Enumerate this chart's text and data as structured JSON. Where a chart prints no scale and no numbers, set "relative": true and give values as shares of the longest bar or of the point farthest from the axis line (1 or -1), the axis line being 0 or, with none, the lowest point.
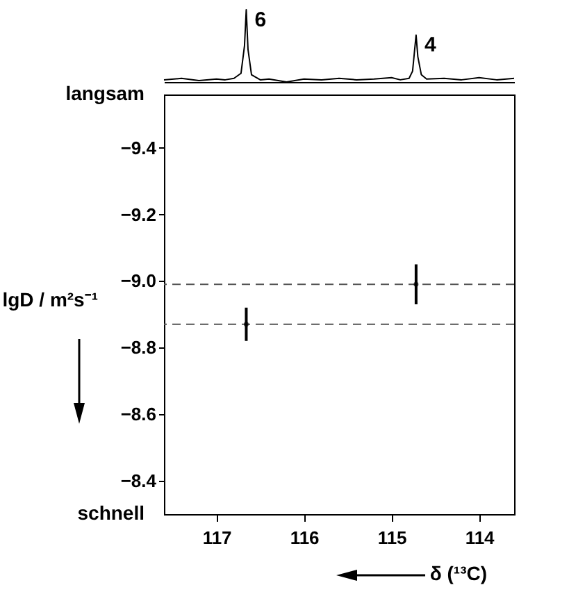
{
  "chart_data": [
    {
      "type": "line",
      "relative": true,
      "xlim": [
        117.6,
        113.6
      ],
      "x": [
        117.6,
        117.4,
        117.2,
        117.0,
        116.9,
        116.8,
        116.72,
        116.68,
        116.66,
        116.64,
        116.6,
        116.5,
        116.4,
        116.2,
        116.0,
        115.8,
        115.6,
        115.4,
        115.2,
        115.0,
        114.9,
        114.8,
        114.76,
        114.74,
        114.72,
        114.7,
        114.66,
        114.6,
        114.4,
        114.2,
        114.0,
        113.8,
        113.6
      ],
      "values": [
        0.03,
        0.05,
        0.02,
        0.04,
        0.03,
        0.05,
        0.12,
        0.5,
        1,
        0.45,
        0.1,
        0.03,
        0.04,
        0,
        0.04,
        0.03,
        0.05,
        0.03,
        0.04,
        0.06,
        0.03,
        0.05,
        0.15,
        0.4,
        0.65,
        0.35,
        0.1,
        0.04,
        0.05,
        0.03,
        0.06,
        0.03,
        0.05
      ],
      "annotations": [
        {
          "text": "6",
          "x": 116.66,
          "y": 1
        },
        {
          "text": "4",
          "x": 114.72,
          "y": 0.65
        }
      ]
    },
    {
      "type": "scatter",
      "marker": "circle",
      "xlabel": "δ (¹³C)",
      "ylabel": "lgD / m²s⁻¹",
      "xlim": [
        117.6,
        113.6
      ],
      "xticks": [
        117,
        116,
        115,
        114
      ],
      "ylim": [
        -8.3,
        -9.56
      ],
      "yticks": [
        {
          "value": -9.4,
          "label": "−9.4"
        },
        {
          "value": -9.2,
          "label": "−9.2"
        },
        {
          "value": -9.0,
          "label": "−9.0"
        },
        {
          "value": -8.8,
          "label": "−8.8"
        },
        {
          "value": -8.6,
          "label": "−8.6"
        },
        {
          "value": -8.4,
          "label": "−8.4"
        }
      ],
      "x": [
        116.66,
        114.72
      ],
      "values": [
        -8.87,
        -8.99
      ],
      "errors": [
        0.05,
        0.06
      ],
      "ref_lines": [
        {
          "axis": "y",
          "value": -8.99,
          "line_style": "dashed"
        },
        {
          "axis": "y",
          "value": -8.87,
          "line_style": "dashed"
        }
      ],
      "annotations": [
        "langsam",
        "schnell"
      ]
    }
  ]
}
